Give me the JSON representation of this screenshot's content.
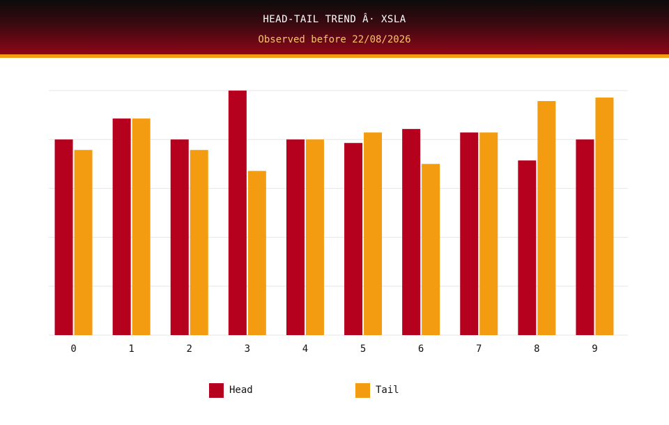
{
  "header": {
    "title": "HEAD-TAIL TREND Â· XSLA",
    "subtitle": "Observed before 22/08/2026"
  },
  "colors": {
    "head": "#b5001e",
    "tail": "#f39c12",
    "grid": "#e6e6e6"
  },
  "chart_data": {
    "type": "bar",
    "title": "HEAD-TAIL TREND Â· XSLA",
    "subtitle": "Observed before 22/08/2026",
    "xlabel": "",
    "ylabel": "",
    "categories": [
      "0",
      "1",
      "2",
      "3",
      "4",
      "5",
      "6",
      "7",
      "8",
      "9"
    ],
    "series": [
      {
        "name": "Head",
        "values": [
          28,
          31,
          28,
          35,
          28,
          27.5,
          29.5,
          29,
          25,
          28
        ]
      },
      {
        "name": "Tail",
        "values": [
          26.5,
          31,
          26.5,
          23.5,
          28,
          29,
          24.5,
          29,
          33.5,
          34
        ]
      }
    ],
    "ylim": [
      0,
      35
    ],
    "y_ticks_shown": false,
    "grid": true,
    "legend": "bottom"
  },
  "legend": {
    "head_label": "Head",
    "tail_label": "Tail"
  }
}
